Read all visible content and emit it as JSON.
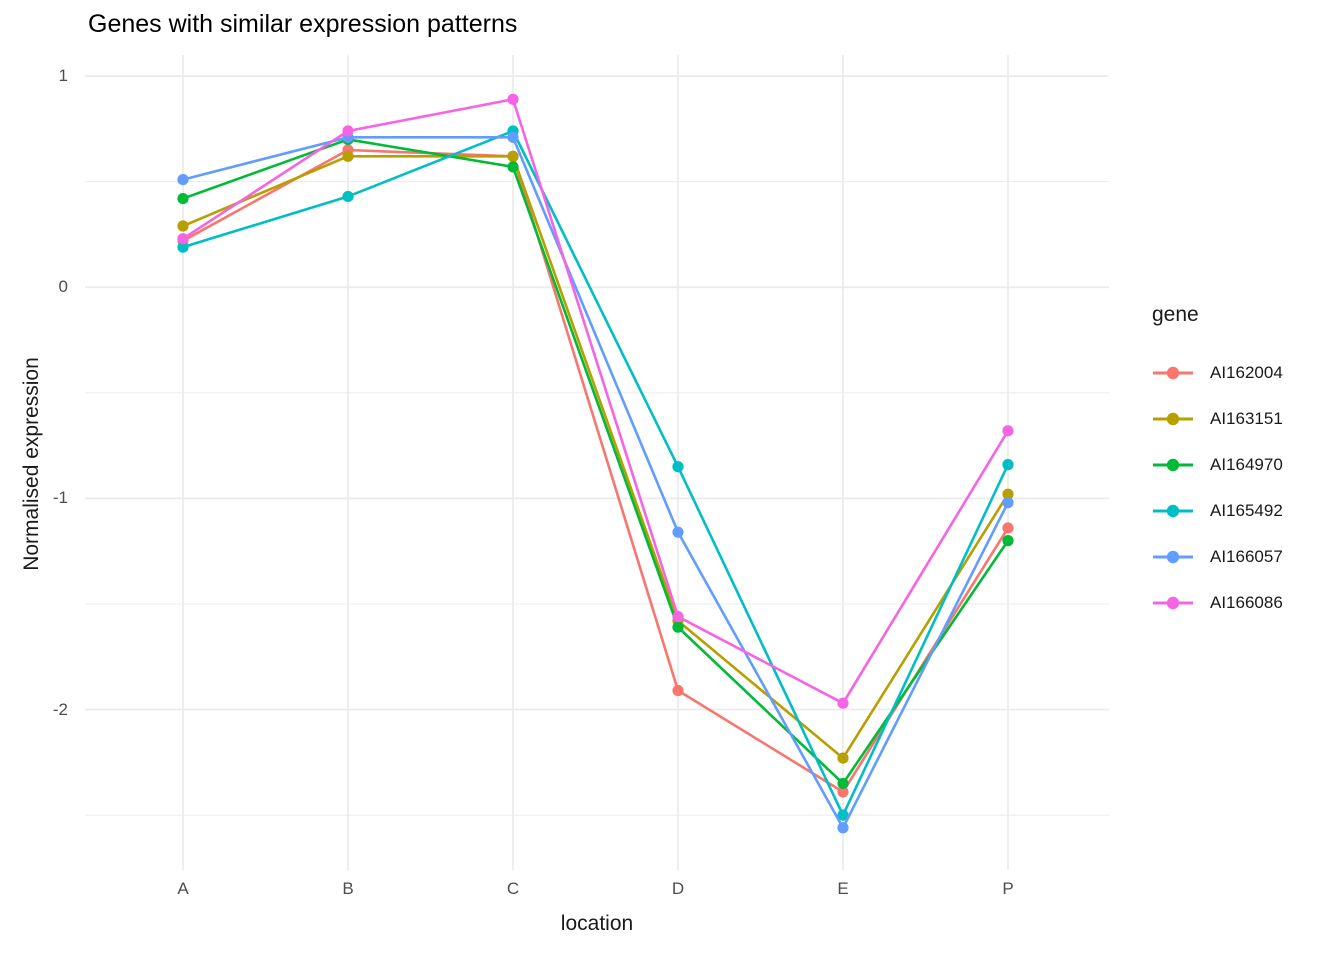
{
  "chart_data": {
    "type": "line",
    "title": "Genes with similar expression patterns",
    "xlabel": "location",
    "ylabel": "Normalised expression",
    "legend_title": "gene",
    "legend_position": "right",
    "categories": [
      "A",
      "B",
      "C",
      "D",
      "E",
      "P"
    ],
    "series": [
      {
        "name": "AI162004",
        "color": "#F8766D",
        "values": [
          0.22,
          0.65,
          0.62,
          -1.91,
          -2.39,
          -1.14
        ]
      },
      {
        "name": "AI163151",
        "color": "#B79F00",
        "values": [
          0.29,
          0.62,
          0.62,
          -1.58,
          -2.23,
          -0.98
        ]
      },
      {
        "name": "AI164970",
        "color": "#00BA38",
        "values": [
          0.42,
          0.7,
          0.57,
          -1.61,
          -2.35,
          -1.2
        ]
      },
      {
        "name": "AI165492",
        "color": "#00BFC4",
        "values": [
          0.19,
          0.43,
          0.74,
          -0.85,
          -2.5,
          -0.84
        ]
      },
      {
        "name": "AI166057",
        "color": "#619CFF",
        "values": [
          0.51,
          0.71,
          0.71,
          -1.16,
          -2.56,
          -1.02
        ]
      },
      {
        "name": "AI166086",
        "color": "#F564E3",
        "values": [
          0.23,
          0.74,
          0.89,
          -1.56,
          -1.97,
          -0.68
        ]
      }
    ],
    "y_tick_labels": [
      "1",
      "0",
      "-1",
      "-2"
    ],
    "y_ticks": [
      1,
      0,
      -1,
      -2
    ],
    "y_minor_ticks": [
      0.5,
      -0.5,
      -1.5,
      -2.5
    ],
    "ylim": [
      -2.76,
      1.1
    ],
    "grid": true,
    "background_color": "#FFFFFF",
    "gridline_color": "#EBEBEB",
    "tick_label_color": "#4D4D4D",
    "text_color": "#1A1A1A"
  }
}
